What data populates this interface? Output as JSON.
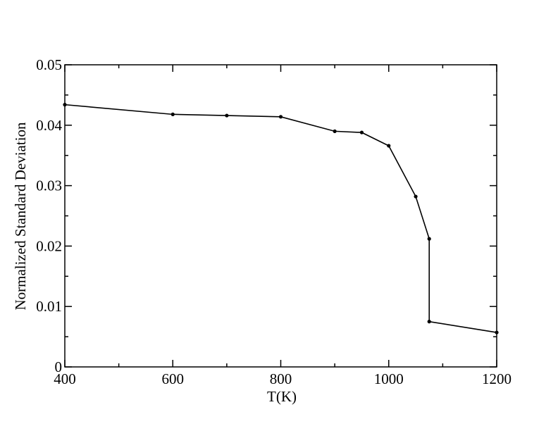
{
  "chart_data": {
    "type": "line",
    "title": "",
    "xlabel": "T(K)",
    "ylabel": "Normalized Standard Deviation",
    "xlim": [
      400,
      1200
    ],
    "ylim": [
      0,
      0.05
    ],
    "xticks": [
      400,
      600,
      800,
      1000,
      1200
    ],
    "xtick_labels": [
      "400",
      "600",
      "800",
      "1000",
      "1200"
    ],
    "yticks": [
      0,
      0.01,
      0.02,
      0.03,
      0.04,
      0.05
    ],
    "ytick_labels": [
      "0",
      "0.01",
      "0.02",
      "0.03",
      "0.04",
      "0.05"
    ],
    "grid": false,
    "legend": "none",
    "line_color": "#000000",
    "series": [
      {
        "x": [
          400,
          600,
          700,
          800,
          900,
          950,
          1000,
          1050,
          1075,
          1075,
          1200
        ],
        "y": [
          0.0434,
          0.0418,
          0.0416,
          0.0414,
          0.039,
          0.0388,
          0.0366,
          0.0282,
          0.0212,
          0.0075,
          0.0057
        ]
      }
    ]
  }
}
